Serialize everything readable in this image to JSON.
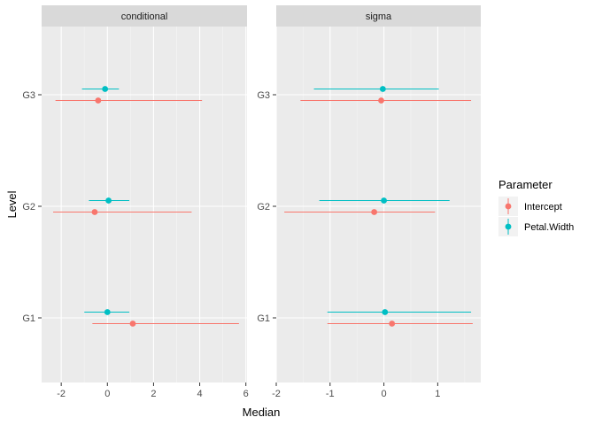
{
  "chart_data": {
    "type": "errorbar",
    "xlabel": "Median",
    "ylabel": "Level",
    "levels": [
      "G1",
      "G2",
      "G3"
    ],
    "legend": {
      "title": "Parameter",
      "position": "right"
    },
    "series_colors": {
      "Intercept": "#F8766D",
      "Petal.Width": "#00BFC4"
    },
    "facets": [
      {
        "name": "conditional",
        "xlim": [
          -2.85,
          6.05
        ],
        "xticks": [
          -2,
          0,
          2,
          4,
          6
        ],
        "xtick_labels": [
          "-2",
          "0",
          "2",
          "4",
          "6"
        ],
        "series": [
          {
            "name": "Intercept",
            "points": [
              {
                "level": "G1",
                "median": 1.1,
                "low": -0.65,
                "high": 5.7
              },
              {
                "level": "G2",
                "median": -0.55,
                "low": -2.35,
                "high": 3.65
              },
              {
                "level": "G3",
                "median": -0.4,
                "low": -2.25,
                "high": 4.1
              }
            ]
          },
          {
            "name": "Petal.Width",
            "points": [
              {
                "level": "G1",
                "median": 0.0,
                "low": -1.0,
                "high": 0.95
              },
              {
                "level": "G2",
                "median": 0.05,
                "low": -0.8,
                "high": 0.95
              },
              {
                "level": "G3",
                "median": -0.1,
                "low": -1.1,
                "high": 0.5
              }
            ]
          }
        ]
      },
      {
        "name": "sigma",
        "xlim": [
          -2.0,
          1.8
        ],
        "xticks": [
          -2,
          -1,
          0,
          1
        ],
        "xtick_labels": [
          "-2",
          "-1",
          "0",
          "1"
        ],
        "series": [
          {
            "name": "Intercept",
            "points": [
              {
                "level": "G1",
                "median": 0.15,
                "low": -1.05,
                "high": 1.65
              },
              {
                "level": "G2",
                "median": -0.18,
                "low": -1.85,
                "high": 0.95
              },
              {
                "level": "G3",
                "median": -0.05,
                "low": -1.55,
                "high": 1.62
              }
            ]
          },
          {
            "name": "Petal.Width",
            "points": [
              {
                "level": "G1",
                "median": 0.02,
                "low": -1.05,
                "high": 1.62
              },
              {
                "level": "G2",
                "median": 0.0,
                "low": -1.2,
                "high": 1.22
              },
              {
                "level": "G3",
                "median": -0.02,
                "low": -1.3,
                "high": 1.02
              }
            ]
          }
        ]
      }
    ]
  }
}
